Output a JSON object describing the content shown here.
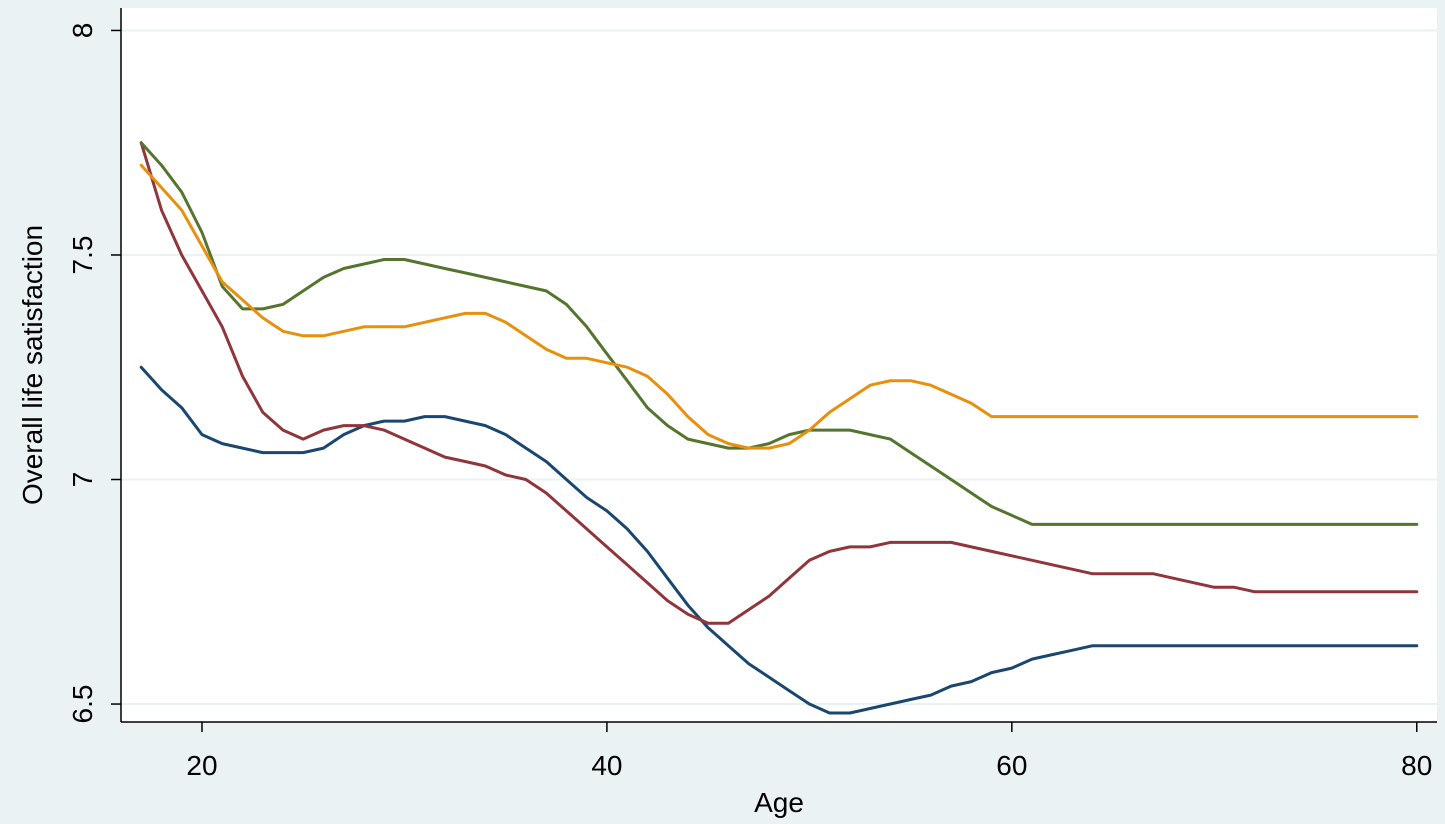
{
  "chart_data": {
    "type": "line",
    "title": "",
    "xlabel": "Age",
    "ylabel": "Overall life satisfaction",
    "xlim": [
      16,
      81
    ],
    "ylim": [
      6.46,
      8.05
    ],
    "xticks": [
      20,
      40,
      60,
      80
    ],
    "yticks": [
      6.5,
      7,
      7.5,
      8
    ],
    "xtick_labels": [
      "20",
      "40",
      "60",
      "80"
    ],
    "ytick_labels": [
      "6.5",
      "7",
      "7.5",
      "8"
    ],
    "grid": "horizontal",
    "legend": "none",
    "series": [
      {
        "color": "#1a476f",
        "x": [
          17,
          18,
          19,
          20,
          21,
          22,
          23,
          24,
          25,
          26,
          27,
          28,
          29,
          30,
          31,
          32,
          33,
          34,
          35,
          36,
          37,
          38,
          39,
          40,
          41,
          42,
          43,
          44,
          45,
          46,
          47,
          48,
          49,
          50,
          51,
          52,
          53,
          54,
          55,
          56,
          57,
          58,
          59,
          60,
          61,
          62,
          63,
          64,
          65,
          66,
          67,
          68,
          69,
          70,
          71,
          72,
          73,
          74,
          75,
          76,
          77,
          78,
          79,
          80
        ],
        "values": [
          7.25,
          7.2,
          7.16,
          7.1,
          7.08,
          7.07,
          7.06,
          7.06,
          7.06,
          7.07,
          7.1,
          7.12,
          7.13,
          7.13,
          7.14,
          7.14,
          7.13,
          7.12,
          7.1,
          7.07,
          7.04,
          7.0,
          6.96,
          6.93,
          6.89,
          6.84,
          6.78,
          6.72,
          6.67,
          6.63,
          6.59,
          6.56,
          6.53,
          6.5,
          6.48,
          6.48,
          6.49,
          6.5,
          6.51,
          6.52,
          6.54,
          6.55,
          6.57,
          6.58,
          6.6,
          6.61,
          6.62,
          6.63,
          6.63,
          6.63,
          6.63,
          6.63,
          6.63,
          6.63,
          6.63,
          6.63,
          6.63,
          6.63,
          6.63,
          6.63,
          6.63,
          6.63,
          6.63,
          6.63
        ]
      },
      {
        "color": "#90353b",
        "x": [
          17,
          18,
          19,
          20,
          21,
          22,
          23,
          24,
          25,
          26,
          27,
          28,
          29,
          30,
          31,
          32,
          33,
          34,
          35,
          36,
          37,
          38,
          39,
          40,
          41,
          42,
          43,
          44,
          45,
          46,
          47,
          48,
          49,
          50,
          51,
          52,
          53,
          54,
          55,
          56,
          57,
          58,
          59,
          60,
          61,
          62,
          63,
          64,
          65,
          66,
          67,
          68,
          69,
          70,
          71,
          72,
          73,
          74,
          75,
          76,
          77,
          78,
          79,
          80
        ],
        "values": [
          7.75,
          7.6,
          7.5,
          7.42,
          7.34,
          7.23,
          7.15,
          7.11,
          7.09,
          7.11,
          7.12,
          7.12,
          7.11,
          7.09,
          7.07,
          7.05,
          7.04,
          7.03,
          7.01,
          7.0,
          6.97,
          6.93,
          6.89,
          6.85,
          6.81,
          6.77,
          6.73,
          6.7,
          6.68,
          6.68,
          6.71,
          6.74,
          6.78,
          6.82,
          6.84,
          6.85,
          6.85,
          6.86,
          6.86,
          6.86,
          6.86,
          6.85,
          6.84,
          6.83,
          6.82,
          6.81,
          6.8,
          6.79,
          6.79,
          6.79,
          6.79,
          6.78,
          6.77,
          6.76,
          6.76,
          6.75,
          6.75,
          6.75,
          6.75,
          6.75,
          6.75,
          6.75,
          6.75,
          6.75
        ]
      },
      {
        "color": "#55752f",
        "x": [
          17,
          18,
          19,
          20,
          21,
          22,
          23,
          24,
          25,
          26,
          27,
          28,
          29,
          30,
          31,
          32,
          33,
          34,
          35,
          36,
          37,
          38,
          39,
          40,
          41,
          42,
          43,
          44,
          45,
          46,
          47,
          48,
          49,
          50,
          51,
          52,
          53,
          54,
          55,
          56,
          57,
          58,
          59,
          60,
          61,
          62,
          63,
          64,
          65,
          66,
          67,
          68,
          69,
          70,
          71,
          72,
          73,
          74,
          75,
          76,
          77,
          78,
          79,
          80
        ],
        "values": [
          7.75,
          7.7,
          7.64,
          7.55,
          7.43,
          7.38,
          7.38,
          7.39,
          7.42,
          7.45,
          7.47,
          7.48,
          7.49,
          7.49,
          7.48,
          7.47,
          7.46,
          7.45,
          7.44,
          7.43,
          7.42,
          7.39,
          7.34,
          7.28,
          7.22,
          7.16,
          7.12,
          7.09,
          7.08,
          7.07,
          7.07,
          7.08,
          7.1,
          7.11,
          7.11,
          7.11,
          7.1,
          7.09,
          7.06,
          7.03,
          7.0,
          6.97,
          6.94,
          6.92,
          6.9,
          6.9,
          6.9,
          6.9,
          6.9,
          6.9,
          6.9,
          6.9,
          6.9,
          6.9,
          6.9,
          6.9,
          6.9,
          6.9,
          6.9,
          6.9,
          6.9,
          6.9,
          6.9,
          6.9
        ]
      },
      {
        "color": "#e8900d",
        "x": [
          17,
          18,
          19,
          20,
          21,
          22,
          23,
          24,
          25,
          26,
          27,
          28,
          29,
          30,
          31,
          32,
          33,
          34,
          35,
          36,
          37,
          38,
          39,
          40,
          41,
          42,
          43,
          44,
          45,
          46,
          47,
          48,
          49,
          50,
          51,
          52,
          53,
          54,
          55,
          56,
          57,
          58,
          59,
          60,
          61,
          62,
          63,
          64,
          65,
          66,
          67,
          68,
          69,
          70,
          71,
          72,
          73,
          74,
          75,
          76,
          77,
          78,
          79,
          80
        ],
        "values": [
          7.7,
          7.65,
          7.6,
          7.52,
          7.44,
          7.4,
          7.36,
          7.33,
          7.32,
          7.32,
          7.33,
          7.34,
          7.34,
          7.34,
          7.35,
          7.36,
          7.37,
          7.37,
          7.35,
          7.32,
          7.29,
          7.27,
          7.27,
          7.26,
          7.25,
          7.23,
          7.19,
          7.14,
          7.1,
          7.08,
          7.07,
          7.07,
          7.08,
          7.11,
          7.15,
          7.18,
          7.21,
          7.22,
          7.22,
          7.21,
          7.19,
          7.17,
          7.14,
          7.14,
          7.14,
          7.14,
          7.14,
          7.14,
          7.14,
          7.14,
          7.14,
          7.14,
          7.14,
          7.14,
          7.14,
          7.14,
          7.14,
          7.14,
          7.14,
          7.14,
          7.14,
          7.14,
          7.14,
          7.14
        ]
      }
    ]
  }
}
